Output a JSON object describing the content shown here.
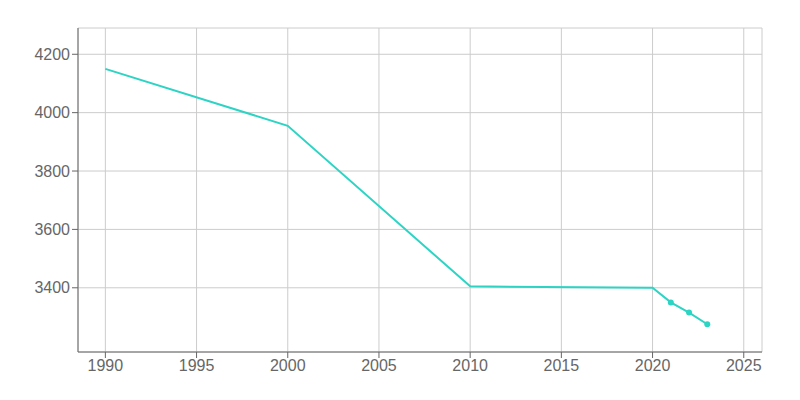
{
  "chart_data": {
    "type": "line",
    "x": [
      1990,
      2000,
      2010,
      2020,
      2021,
      2022,
      2023
    ],
    "series": [
      {
        "type": "line",
        "color": "#2DD4C4",
        "values": [
          4150,
          3955,
          3405,
          3400,
          3350,
          3315,
          3275
        ]
      },
      {
        "type": "scatter",
        "color": "#2DD4C4",
        "marker": "o",
        "values": [
          null,
          null,
          null,
          null,
          3350,
          3315,
          3275
        ]
      }
    ],
    "xlim": [
      1988.5,
      2026
    ],
    "ylim": [
      3180,
      4290
    ],
    "xticks": [
      1990,
      1995,
      2000,
      2005,
      2010,
      2015,
      2020,
      2025
    ],
    "yticks": [
      3400,
      3600,
      3800,
      4000,
      4200
    ],
    "grid": true
  }
}
